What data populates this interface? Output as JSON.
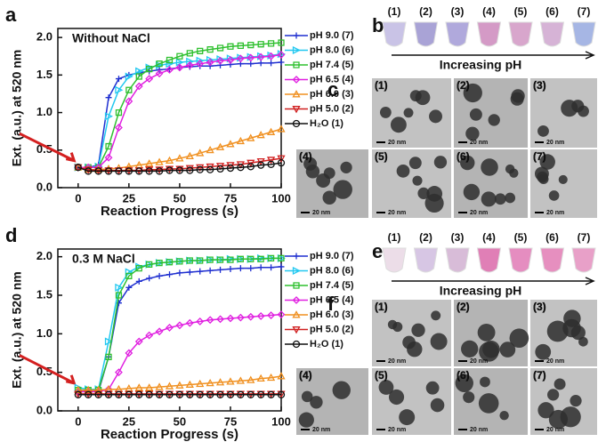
{
  "chart_data": [
    {
      "type": "line",
      "panel": "a",
      "title": "Without NaCl",
      "x_label": "Reaction Progress (s)",
      "y_label": "Ext. (a.u.) at 520 nm",
      "x": [
        0,
        5,
        10,
        15,
        20,
        25,
        30,
        35,
        40,
        45,
        50,
        55,
        60,
        65,
        70,
        75,
        80,
        85,
        90,
        95,
        100
      ],
      "xlim": [
        -10,
        100
      ],
      "xticks": [
        0,
        25,
        50,
        75,
        100
      ],
      "ylim": [
        0,
        2.12
      ],
      "yticks": [
        {
          "value": 0,
          "label": "0.0"
        },
        0.5,
        {
          "value": 1,
          "label": "1.0"
        },
        1.5,
        {
          "value": 2,
          "label": "2.0"
        }
      ],
      "series": [
        {
          "name": "pH 9.0 (7)",
          "color": "#1f2fd0",
          "marker": "plus",
          "values": [
            0.27,
            0.27,
            0.3,
            1.2,
            1.45,
            1.5,
            1.53,
            1.55,
            1.57,
            1.58,
            1.6,
            1.61,
            1.62,
            1.62,
            1.63,
            1.64,
            1.65,
            1.65,
            1.66,
            1.66,
            1.67
          ]
        },
        {
          "name": "pH 8.0 (6)",
          "color": "#22c8f0",
          "marker": "triangle-right",
          "values": [
            0.27,
            0.27,
            0.28,
            0.95,
            1.3,
            1.48,
            1.55,
            1.6,
            1.63,
            1.65,
            1.67,
            1.68,
            1.69,
            1.7,
            1.71,
            1.72,
            1.73,
            1.74,
            1.75,
            1.76,
            1.78
          ]
        },
        {
          "name": "pH 7.4 (5)",
          "color": "#2fc02f",
          "marker": "square",
          "values": [
            0.27,
            0.27,
            0.27,
            0.55,
            1.0,
            1.3,
            1.48,
            1.58,
            1.65,
            1.7,
            1.75,
            1.79,
            1.82,
            1.84,
            1.86,
            1.88,
            1.89,
            1.9,
            1.91,
            1.92,
            1.93
          ]
        },
        {
          "name": "pH 6.5 (4)",
          "color": "#e020e0",
          "marker": "diamond",
          "values": [
            0.27,
            0.27,
            0.27,
            0.4,
            0.8,
            1.15,
            1.35,
            1.45,
            1.52,
            1.57,
            1.6,
            1.63,
            1.65,
            1.67,
            1.69,
            1.7,
            1.72,
            1.73,
            1.74,
            1.75,
            1.77
          ]
        },
        {
          "name": "pH 6.0 (3)",
          "color": "#f09020",
          "marker": "triangle-up",
          "values": [
            0.27,
            0.24,
            0.24,
            0.25,
            0.26,
            0.28,
            0.3,
            0.32,
            0.34,
            0.36,
            0.39,
            0.42,
            0.46,
            0.5,
            0.54,
            0.58,
            0.62,
            0.66,
            0.7,
            0.74,
            0.78
          ]
        },
        {
          "name": "pH 5.0 (2)",
          "color": "#d02020",
          "marker": "triangle-down",
          "values": [
            0.27,
            0.24,
            0.23,
            0.23,
            0.23,
            0.23,
            0.23,
            0.24,
            0.24,
            0.25,
            0.25,
            0.26,
            0.27,
            0.28,
            0.29,
            0.3,
            0.31,
            0.33,
            0.35,
            0.37,
            0.39
          ]
        },
        {
          "name": "H₂O (1)",
          "color": "#111111",
          "marker": "circle",
          "values": [
            0.27,
            0.22,
            0.22,
            0.22,
            0.22,
            0.22,
            0.22,
            0.22,
            0.22,
            0.23,
            0.23,
            0.23,
            0.24,
            0.24,
            0.25,
            0.26,
            0.27,
            0.28,
            0.3,
            0.31,
            0.33
          ]
        }
      ]
    },
    {
      "type": "line",
      "panel": "d",
      "title": "0.3 M NaCl",
      "x_label": "Reaction Progress (s)",
      "y_label": "Ext. (a.u.) at 520 nm",
      "x": [
        0,
        5,
        10,
        15,
        20,
        25,
        30,
        35,
        40,
        45,
        50,
        55,
        60,
        65,
        70,
        75,
        80,
        85,
        90,
        95,
        100
      ],
      "xlim": [
        -10,
        100
      ],
      "xticks": [
        0,
        25,
        50,
        75,
        100
      ],
      "ylim": [
        0,
        2.1
      ],
      "yticks": [
        {
          "value": 0,
          "label": "0.0"
        },
        0.5,
        {
          "value": 1,
          "label": "1.0"
        },
        1.5,
        {
          "value": 2,
          "label": "2.0"
        }
      ],
      "series": [
        {
          "name": "pH 9.0 (7)",
          "color": "#1f2fd0",
          "marker": "plus",
          "values": [
            0.25,
            0.25,
            0.25,
            0.7,
            1.4,
            1.6,
            1.68,
            1.72,
            1.75,
            1.77,
            1.79,
            1.8,
            1.81,
            1.82,
            1.83,
            1.84,
            1.85,
            1.85,
            1.86,
            1.86,
            1.87
          ]
        },
        {
          "name": "pH 8.0 (6)",
          "color": "#22c8f0",
          "marker": "triangle-right",
          "values": [
            0.3,
            0.28,
            0.28,
            0.9,
            1.6,
            1.8,
            1.87,
            1.9,
            1.92,
            1.93,
            1.94,
            1.95,
            1.95,
            1.96,
            1.96,
            1.97,
            1.97,
            1.97,
            1.98,
            1.98,
            1.98
          ]
        },
        {
          "name": "pH 7.4 (5)",
          "color": "#2fc02f",
          "marker": "square",
          "values": [
            0.27,
            0.27,
            0.27,
            0.7,
            1.5,
            1.75,
            1.85,
            1.9,
            1.92,
            1.93,
            1.94,
            1.95,
            1.95,
            1.96,
            1.96,
            1.96,
            1.97,
            1.97,
            1.97,
            1.98,
            1.98
          ]
        },
        {
          "name": "pH 6.5 (4)",
          "color": "#e020e0",
          "marker": "diamond",
          "values": [
            0.25,
            0.25,
            0.25,
            0.28,
            0.5,
            0.75,
            0.9,
            0.98,
            1.03,
            1.08,
            1.11,
            1.14,
            1.16,
            1.18,
            1.19,
            1.2,
            1.21,
            1.22,
            1.23,
            1.24,
            1.25
          ]
        },
        {
          "name": "pH 6.0 (3)",
          "color": "#f09020",
          "marker": "triangle-up",
          "values": [
            0.27,
            0.27,
            0.27,
            0.28,
            0.28,
            0.29,
            0.3,
            0.3,
            0.31,
            0.32,
            0.33,
            0.34,
            0.35,
            0.36,
            0.37,
            0.38,
            0.39,
            0.4,
            0.42,
            0.43,
            0.45
          ]
        },
        {
          "name": "pH 5.0 (2)",
          "color": "#d02020",
          "marker": "triangle-down",
          "values": [
            0.22,
            0.22,
            0.22,
            0.22,
            0.22,
            0.22,
            0.22,
            0.22,
            0.22,
            0.22,
            0.22,
            0.22,
            0.22,
            0.22,
            0.22,
            0.22,
            0.22,
            0.22,
            0.22,
            0.22,
            0.22
          ]
        },
        {
          "name": "H₂O (1)",
          "color": "#111111",
          "marker": "circle",
          "values": [
            0.21,
            0.21,
            0.21,
            0.21,
            0.21,
            0.21,
            0.21,
            0.21,
            0.21,
            0.21,
            0.21,
            0.21,
            0.21,
            0.21,
            0.21,
            0.21,
            0.21,
            0.21,
            0.21,
            0.21,
            0.21
          ]
        }
      ]
    }
  ],
  "tube_panels": [
    {
      "letter": "b",
      "labels": [
        "(1)",
        "(2)",
        "(3)",
        "(4)",
        "(5)",
        "(6)",
        "(7)"
      ],
      "caption": "Increasing pH"
    },
    {
      "letter": "e",
      "labels": [
        "(1)",
        "(2)",
        "(3)",
        "(4)",
        "(5)",
        "(6)",
        "(7)"
      ],
      "caption": "Increasing pH"
    }
  ],
  "tem_panels": [
    {
      "letter": "c",
      "images": [
        {
          "label": "(1)",
          "scale": "20 nm"
        },
        {
          "label": "(2)",
          "scale": "20 nm"
        },
        {
          "label": "(3)",
          "scale": "20 nm"
        },
        {
          "label": "(4)",
          "scale": "20 nm"
        },
        {
          "label": "(5)",
          "scale": "20 nm"
        },
        {
          "label": "(6)",
          "scale": "20 nm"
        },
        {
          "label": "(7)",
          "scale": "20 nm"
        }
      ]
    },
    {
      "letter": "f",
      "images": [
        {
          "label": "(1)",
          "scale": "20 nm"
        },
        {
          "label": "(2)",
          "scale": "20 nm"
        },
        {
          "label": "(3)",
          "scale": "20 nm"
        },
        {
          "label": "(4)",
          "scale": "20 nm"
        },
        {
          "label": "(5)",
          "scale": "20 nm"
        },
        {
          "label": "(6)",
          "scale": "20 nm"
        },
        {
          "label": "(7)",
          "scale": "20 nm"
        }
      ]
    }
  ]
}
